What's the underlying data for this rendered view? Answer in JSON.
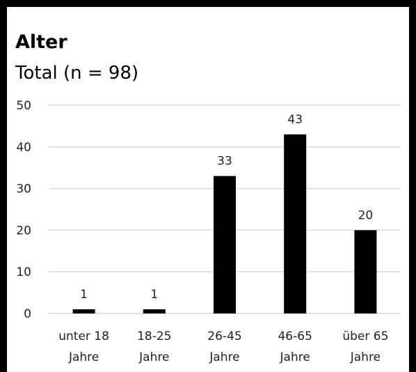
{
  "chart_data": {
    "type": "bar",
    "title": "Alter",
    "subtitle": "Total (n = 98)",
    "categories": [
      [
        "unter 18",
        "Jahre"
      ],
      [
        "18-25",
        "Jahre"
      ],
      [
        "26-45",
        "Jahre"
      ],
      [
        "46-65",
        "Jahre"
      ],
      [
        "über 65",
        "Jahre"
      ]
    ],
    "values": [
      1,
      1,
      33,
      43,
      20
    ],
    "ylim": [
      0,
      50
    ],
    "yticks": [
      0,
      10,
      20,
      30,
      40,
      50
    ],
    "grid": true,
    "colors": {
      "bar": "#000000",
      "grid": "#d9d9d9",
      "frame": "#000000"
    }
  }
}
